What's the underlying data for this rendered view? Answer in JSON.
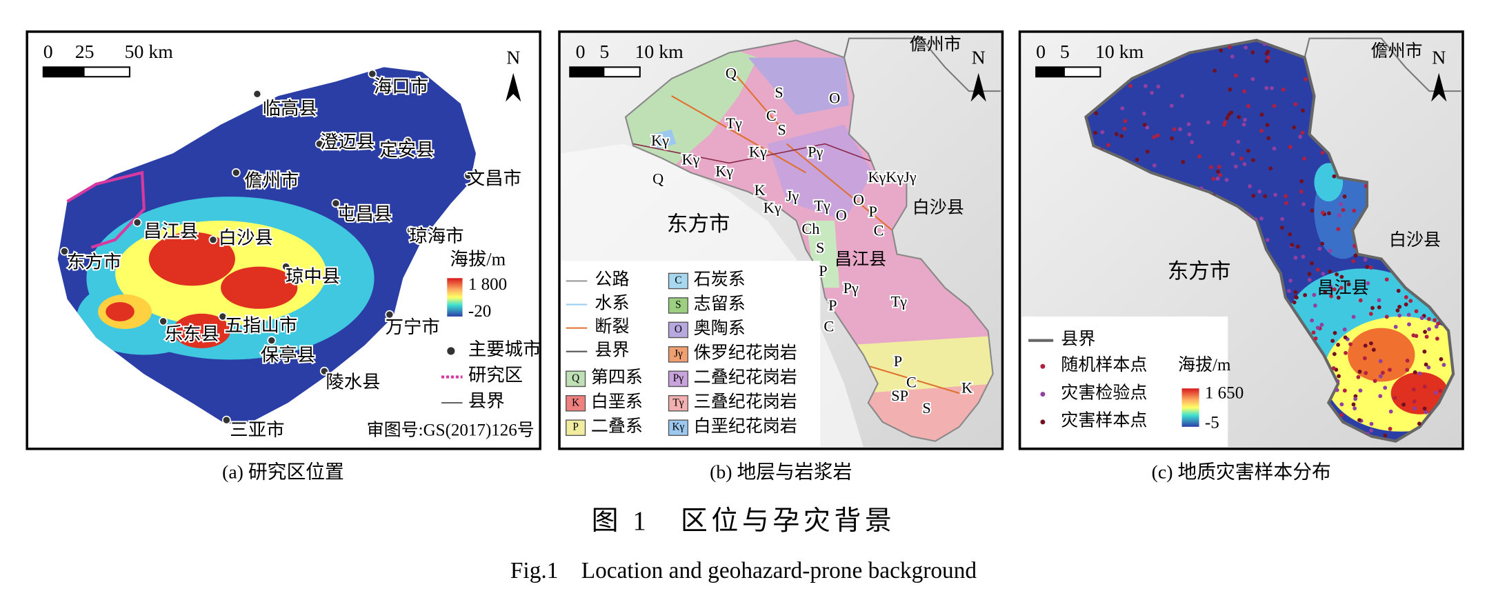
{
  "panel_a": {
    "scale": [
      "0",
      "25",
      "50 km"
    ],
    "north": "N",
    "cities": [
      "海口市",
      "临高县",
      "澄迈县",
      "定安县",
      "文昌市",
      "儋州市",
      "屯昌县",
      "琼海市",
      "昌江县",
      "白沙县",
      "东方市",
      "琼中县",
      "乐东县",
      "五指山市",
      "万宁市",
      "保亭县",
      "陵水县",
      "三亚市"
    ],
    "legend": {
      "title": "海拔/m",
      "max": "1 800",
      "min": "-20",
      "items": [
        "主要城市",
        "研究区",
        "县界"
      ]
    },
    "note": "审图号:GS(2017)126号",
    "caption": "(a) 研究区位置"
  },
  "panel_b": {
    "scale": [
      "0",
      "5",
      "10 km"
    ],
    "north": "N",
    "places": [
      "儋州市",
      "东方市",
      "白沙县",
      "昌江县"
    ],
    "units": [
      "Q",
      "Tγ",
      "S",
      "C",
      "S",
      "O",
      "Kγ",
      "Kγ",
      "Kγ",
      "Kγ",
      "Pγ",
      "Q",
      "K",
      "Kγ",
      "Jγ",
      "Tγ",
      "O",
      "O",
      "P",
      "C",
      "KγKγJγ",
      "Ch",
      "S",
      "P",
      "Pγ",
      "P",
      "C",
      "Tγ",
      "P",
      "C",
      "SP",
      "K",
      "S"
    ],
    "legend": {
      "lines": [
        "公路",
        "水系",
        "断裂",
        "县界"
      ],
      "units": [
        {
          "code": "Q",
          "label": "第四系"
        },
        {
          "code": "K",
          "label": "白垩系"
        },
        {
          "code": "P",
          "label": "二叠系"
        },
        {
          "code": "C",
          "label": "石炭系"
        },
        {
          "code": "S",
          "label": "志留系"
        },
        {
          "code": "O",
          "label": "奥陶系"
        },
        {
          "code": "Jγ",
          "label": "侏罗纪花岗岩"
        },
        {
          "code": "Pγ",
          "label": "二叠纪花岗岩"
        },
        {
          "code": "Tγ",
          "label": "三叠纪花岗岩"
        },
        {
          "code": "Kγ",
          "label": "白垩纪花岗岩"
        }
      ]
    },
    "caption": "(b) 地层与岩浆岩"
  },
  "panel_c": {
    "scale": [
      "0",
      "5",
      "10 km"
    ],
    "north": "N",
    "places": [
      "儋州市",
      "东方市",
      "白沙县",
      "昌江县"
    ],
    "legend": {
      "boundary": "县界",
      "points": [
        "随机样本点",
        "灾害检验点",
        "灾害样本点"
      ],
      "title": "海拔/m",
      "max": "1 650",
      "min": "-5"
    },
    "caption": "(c) 地质灾害样本分布"
  },
  "figure": {
    "title": "图 1　区位与孕灾背景",
    "caption": "Fig.1　Location and geohazard-prone background"
  }
}
